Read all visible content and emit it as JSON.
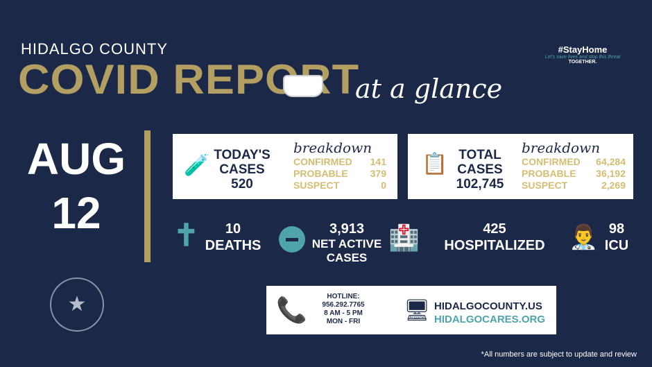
{
  "header": {
    "county": "HIDALGO COUNTY",
    "title": "COVID REPORT",
    "subtitle": "at a glance"
  },
  "stay": {
    "hashtag": "#StayHome",
    "tagline": "Let's save lives and stop this threat",
    "together": "TOGETHER."
  },
  "date": {
    "month": "AUG",
    "day": "12"
  },
  "today": {
    "label1": "TODAY'S",
    "label2": "CASES",
    "value": "520",
    "breakdown": "breakdown",
    "rows": [
      {
        "label": "CONFIRMED",
        "value": "141"
      },
      {
        "label": "PROBABLE",
        "value": "379"
      },
      {
        "label": "SUSPECT",
        "value": "0"
      }
    ]
  },
  "total": {
    "label1": "TOTAL",
    "label2": "CASES",
    "value": "102,745",
    "breakdown": "breakdown",
    "rows": [
      {
        "label": "CONFIRMED",
        "value": "64,284"
      },
      {
        "label": "PROBABLE",
        "value": "36,192"
      },
      {
        "label": "SUSPECT",
        "value": "2,269"
      }
    ]
  },
  "stats": {
    "deaths": {
      "value": "10",
      "label": "DEATHS"
    },
    "active": {
      "value": "3,913",
      "label1": "NET ACTIVE",
      "label2": "CASES"
    },
    "hosp": {
      "value": "425",
      "label": "HOSPITALIZED"
    },
    "icu": {
      "value": "98",
      "label": "ICU"
    }
  },
  "contact": {
    "hotline": "HOTLINE:",
    "phone": "956.292.7765",
    "hours": "8 AM - 5 PM",
    "days": "MON - FRI",
    "site1": "HIDALGOCOUNTY.US",
    "site2": "HIDALGOCARES.ORG"
  },
  "note": "*All numbers are subject to update and review",
  "colors": {
    "background": "#1b2847",
    "gold": "#b39f62",
    "teal": "#4fa3ad"
  }
}
